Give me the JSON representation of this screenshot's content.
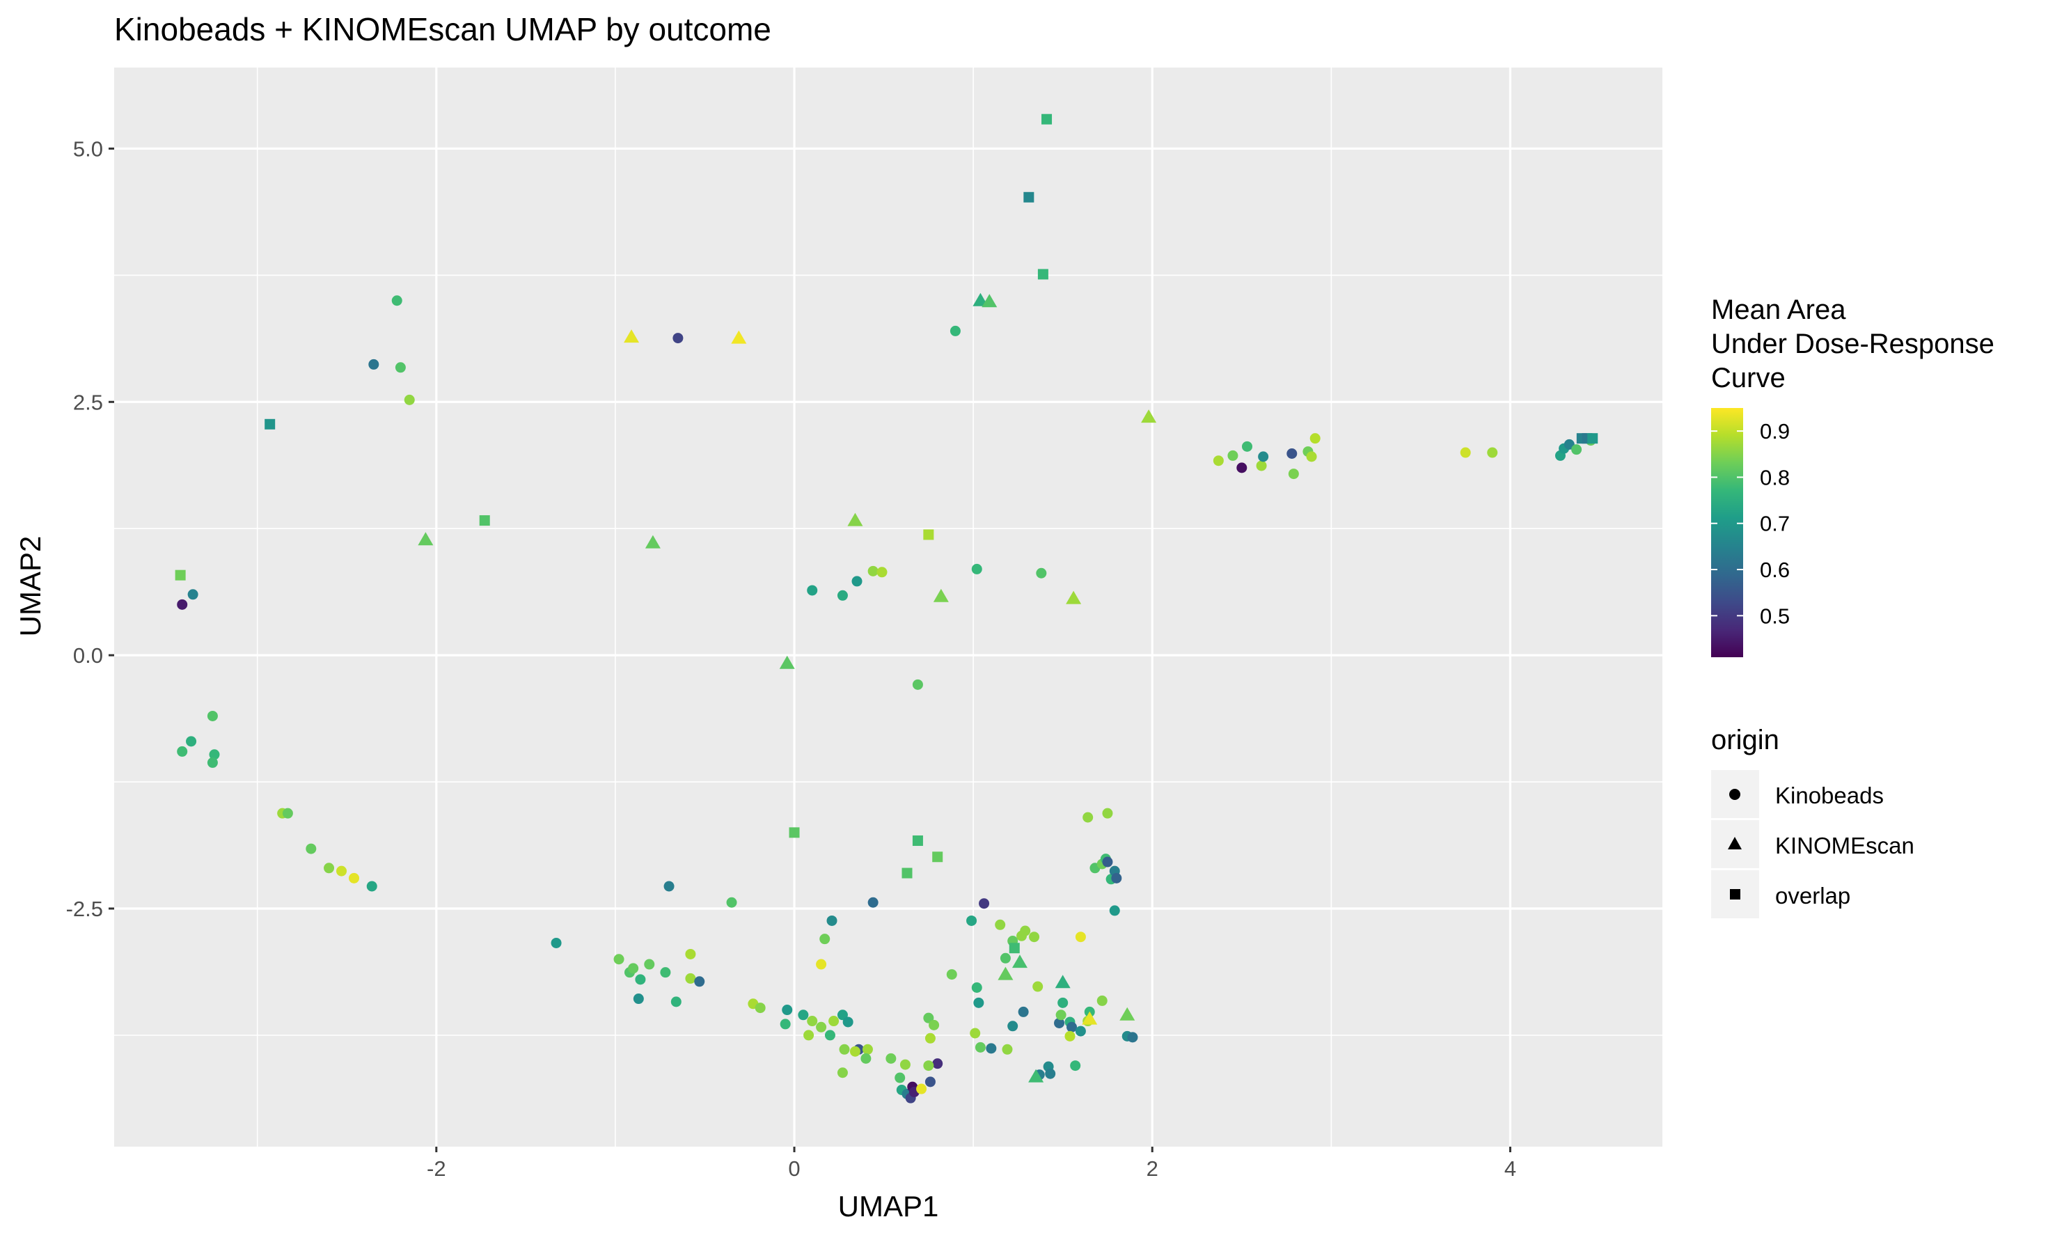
{
  "chart_data": {
    "type": "scatter",
    "title": "Kinobeads + KINOMEscan UMAP by outcome",
    "xlabel": "UMAP1",
    "ylabel": "UMAP2",
    "xlim": [
      -3.8,
      4.85
    ],
    "ylim": [
      -4.85,
      5.8
    ],
    "x_ticks": [
      -2,
      0,
      2,
      4
    ],
    "x_tick_labels": [
      "-2",
      "0",
      "2",
      "4"
    ],
    "y_ticks": [
      -2.5,
      0,
      2.5,
      5
    ],
    "y_tick_labels": [
      "-2.5",
      "0.0",
      "2.5",
      "5.0"
    ],
    "grid": true,
    "color_legend": {
      "title_lines": [
        "Mean Area",
        "Under Dose-Response",
        "Curve"
      ],
      "range": [
        0.41,
        0.95
      ],
      "ticks": [
        0.5,
        0.6,
        0.7,
        0.8,
        0.9
      ],
      "tick_labels": [
        "0.5",
        "0.6",
        "0.7",
        "0.8",
        "0.9"
      ],
      "palette": [
        "#440154",
        "#482878",
        "#3e4a89",
        "#31688e",
        "#26828e",
        "#1f9e89",
        "#35b779",
        "#6ece58",
        "#b5de2b",
        "#fde725"
      ]
    },
    "shape_legend": {
      "title": "origin",
      "items": [
        {
          "label": "Kinobeads",
          "shape": "circle"
        },
        {
          "label": "KINOMEscan",
          "shape": "triangle"
        },
        {
          "label": "overlap",
          "shape": "square"
        }
      ]
    },
    "series": [
      {
        "name": "Kinobeads",
        "shape": "circle",
        "points": [
          [
            -2.22,
            3.5,
            0.78
          ],
          [
            -2.35,
            2.87,
            0.62
          ],
          [
            -2.2,
            2.84,
            0.8
          ],
          [
            -2.15,
            2.52,
            0.86
          ],
          [
            -0.65,
            3.13,
            0.52
          ],
          [
            0.9,
            3.2,
            0.77
          ],
          [
            -3.42,
            0.5,
            0.45
          ],
          [
            -3.36,
            0.6,
            0.65
          ],
          [
            -3.25,
            -0.6,
            0.8
          ],
          [
            -3.42,
            -0.95,
            0.78
          ],
          [
            -3.37,
            -0.85,
            0.75
          ],
          [
            -3.24,
            -0.98,
            0.77
          ],
          [
            -3.25,
            -1.06,
            0.78
          ],
          [
            -2.86,
            -1.56,
            0.87
          ],
          [
            -2.83,
            -1.56,
            0.82
          ],
          [
            -2.7,
            -1.91,
            0.82
          ],
          [
            -2.6,
            -2.1,
            0.85
          ],
          [
            -2.53,
            -2.13,
            0.91
          ],
          [
            -2.46,
            -2.2,
            0.93
          ],
          [
            -2.36,
            -2.28,
            0.73
          ],
          [
            -1.33,
            -2.84,
            0.7
          ],
          [
            -0.7,
            -2.28,
            0.64
          ],
          [
            -0.35,
            -2.44,
            0.8
          ],
          [
            0.1,
            0.64,
            0.72
          ],
          [
            0.27,
            0.59,
            0.74
          ],
          [
            0.35,
            0.73,
            0.7
          ],
          [
            0.44,
            0.83,
            0.86
          ],
          [
            0.49,
            0.82,
            0.88
          ],
          [
            0.69,
            -0.29,
            0.81
          ],
          [
            1.02,
            0.85,
            0.77
          ],
          [
            1.38,
            0.81,
            0.8
          ],
          [
            -0.98,
            -3.0,
            0.83
          ],
          [
            -0.92,
            -3.13,
            0.8
          ],
          [
            -0.9,
            -3.09,
            0.82
          ],
          [
            -0.86,
            -3.2,
            0.76
          ],
          [
            -0.81,
            -3.05,
            0.82
          ],
          [
            -0.87,
            -3.39,
            0.68
          ],
          [
            -0.72,
            -3.13,
            0.78
          ],
          [
            -0.66,
            -3.42,
            0.76
          ],
          [
            -0.58,
            -2.95,
            0.88
          ],
          [
            -0.58,
            -3.19,
            0.87
          ],
          [
            -0.53,
            -3.22,
            0.6
          ],
          [
            -0.23,
            -3.44,
            0.88
          ],
          [
            -0.19,
            -3.48,
            0.85
          ],
          [
            -0.04,
            -3.5,
            0.7
          ],
          [
            -0.05,
            -3.64,
            0.77
          ],
          [
            0.05,
            -3.55,
            0.73
          ],
          [
            0.1,
            -3.61,
            0.86
          ],
          [
            0.08,
            -3.75,
            0.87
          ],
          [
            0.15,
            -3.67,
            0.85
          ],
          [
            0.22,
            -3.61,
            0.87
          ],
          [
            0.2,
            -3.75,
            0.77
          ],
          [
            0.17,
            -2.8,
            0.83
          ],
          [
            0.21,
            -2.62,
            0.67
          ],
          [
            0.15,
            -3.05,
            0.93
          ],
          [
            0.27,
            -3.55,
            0.72
          ],
          [
            0.3,
            -3.62,
            0.7
          ],
          [
            0.28,
            -3.89,
            0.85
          ],
          [
            0.36,
            -3.89,
            0.55
          ],
          [
            0.34,
            -3.91,
            0.88
          ],
          [
            0.41,
            -3.89,
            0.87
          ],
          [
            0.4,
            -3.98,
            0.82
          ],
          [
            0.27,
            -4.12,
            0.85
          ],
          [
            0.44,
            -2.44,
            0.6
          ],
          [
            0.54,
            -3.98,
            0.83
          ],
          [
            0.62,
            -4.04,
            0.86
          ],
          [
            0.59,
            -4.17,
            0.8
          ],
          [
            0.6,
            -4.29,
            0.73
          ],
          [
            0.63,
            -4.33,
            0.64
          ],
          [
            0.65,
            -4.37,
            0.52
          ],
          [
            0.66,
            -4.26,
            0.43
          ],
          [
            0.67,
            -4.31,
            0.46
          ],
          [
            0.71,
            -4.28,
            0.93
          ],
          [
            0.76,
            -4.21,
            0.55
          ],
          [
            0.8,
            -4.03,
            0.48
          ],
          [
            0.75,
            -4.05,
            0.85
          ],
          [
            0.75,
            -3.58,
            0.82
          ],
          [
            0.78,
            -3.65,
            0.84
          ],
          [
            0.76,
            -3.78,
            0.88
          ],
          [
            0.88,
            -3.15,
            0.83
          ],
          [
            0.99,
            -2.62,
            0.73
          ],
          [
            1.06,
            -2.45,
            0.5
          ],
          [
            1.15,
            -2.66,
            0.86
          ],
          [
            1.02,
            -3.28,
            0.77
          ],
          [
            1.03,
            -3.43,
            0.7
          ],
          [
            1.01,
            -3.73,
            0.87
          ],
          [
            1.04,
            -3.87,
            0.82
          ],
          [
            1.1,
            -3.88,
            0.63
          ],
          [
            1.18,
            -2.99,
            0.8
          ],
          [
            1.22,
            -2.82,
            0.82
          ],
          [
            1.27,
            -2.77,
            0.86
          ],
          [
            1.29,
            -2.72,
            0.86
          ],
          [
            1.34,
            -2.78,
            0.86
          ],
          [
            1.19,
            -3.89,
            0.86
          ],
          [
            1.22,
            -3.66,
            0.67
          ],
          [
            1.28,
            -3.52,
            0.62
          ],
          [
            1.36,
            -3.27,
            0.87
          ],
          [
            1.42,
            -4.06,
            0.67
          ],
          [
            1.43,
            -4.13,
            0.64
          ],
          [
            1.48,
            -3.63,
            0.6
          ],
          [
            1.5,
            -3.43,
            0.75
          ],
          [
            1.49,
            -3.55,
            0.83
          ],
          [
            1.54,
            -3.62,
            0.75
          ],
          [
            1.55,
            -3.67,
            0.6
          ],
          [
            1.57,
            -4.05,
            0.77
          ],
          [
            1.6,
            -3.71,
            0.68
          ],
          [
            1.65,
            -3.52,
            0.77
          ],
          [
            1.64,
            -3.61,
            0.87
          ],
          [
            1.54,
            -3.76,
            0.89
          ],
          [
            1.37,
            -4.14,
            0.64
          ],
          [
            1.6,
            -2.78,
            0.93
          ],
          [
            1.64,
            -1.6,
            0.86
          ],
          [
            1.68,
            -2.1,
            0.8
          ],
          [
            1.72,
            -2.06,
            0.83
          ],
          [
            1.74,
            -2.01,
            0.78
          ],
          [
            1.72,
            -3.41,
            0.85
          ],
          [
            1.75,
            -1.56,
            0.86
          ],
          [
            1.75,
            -2.04,
            0.57
          ],
          [
            1.77,
            -2.21,
            0.77
          ],
          [
            1.79,
            -2.13,
            0.64
          ],
          [
            1.8,
            -2.2,
            0.58
          ],
          [
            1.79,
            -2.52,
            0.7
          ],
          [
            1.86,
            -3.76,
            0.67
          ],
          [
            1.89,
            -3.77,
            0.62
          ],
          [
            2.37,
            1.92,
            0.88
          ],
          [
            2.45,
            1.97,
            0.83
          ],
          [
            2.5,
            1.85,
            0.43
          ],
          [
            2.53,
            2.06,
            0.78
          ],
          [
            2.61,
            1.87,
            0.87
          ],
          [
            2.62,
            1.96,
            0.67
          ],
          [
            2.78,
            1.99,
            0.55
          ],
          [
            2.79,
            1.79,
            0.84
          ],
          [
            2.87,
            2.01,
            0.83
          ],
          [
            2.89,
            1.96,
            0.88
          ],
          [
            2.91,
            2.14,
            0.89
          ],
          [
            3.75,
            2.0,
            0.91
          ],
          [
            3.9,
            2.0,
            0.87
          ],
          [
            4.28,
            1.97,
            0.72
          ],
          [
            4.3,
            2.04,
            0.7
          ],
          [
            4.33,
            2.08,
            0.65
          ],
          [
            4.37,
            2.03,
            0.8
          ],
          [
            4.45,
            2.12,
            0.82
          ]
        ]
      },
      {
        "name": "KINOMEscan",
        "shape": "triangle",
        "points": [
          [
            -0.91,
            3.14,
            0.93
          ],
          [
            -0.31,
            3.13,
            0.94
          ],
          [
            1.04,
            3.5,
            0.75
          ],
          [
            1.09,
            3.49,
            0.8
          ],
          [
            1.98,
            2.35,
            0.87
          ],
          [
            -2.06,
            1.14,
            0.82
          ],
          [
            -0.79,
            1.11,
            0.82
          ],
          [
            0.34,
            1.33,
            0.85
          ],
          [
            0.82,
            0.58,
            0.84
          ],
          [
            1.56,
            0.56,
            0.87
          ],
          [
            -0.04,
            -0.08,
            0.81
          ],
          [
            1.18,
            -3.15,
            0.82
          ],
          [
            1.26,
            -3.03,
            0.79
          ],
          [
            1.5,
            -3.23,
            0.75
          ],
          [
            1.65,
            -3.59,
            0.93
          ],
          [
            1.86,
            -3.55,
            0.83
          ],
          [
            1.35,
            -4.16,
            0.78
          ]
        ]
      },
      {
        "name": "overlap",
        "shape": "square",
        "points": [
          [
            1.41,
            5.29,
            0.77
          ],
          [
            1.31,
            4.52,
            0.66
          ],
          [
            1.39,
            3.76,
            0.77
          ],
          [
            -2.93,
            2.28,
            0.69
          ],
          [
            -1.73,
            1.33,
            0.8
          ],
          [
            -3.43,
            0.79,
            0.83
          ],
          [
            0.75,
            1.19,
            0.88
          ],
          [
            0.0,
            -1.75,
            0.81
          ],
          [
            0.69,
            -1.83,
            0.78
          ],
          [
            0.63,
            -2.15,
            0.8
          ],
          [
            0.8,
            -1.99,
            0.82
          ],
          [
            1.23,
            -2.89,
            0.78
          ],
          [
            4.4,
            2.14,
            0.65
          ],
          [
            4.43,
            2.14,
            0.63
          ],
          [
            4.46,
            2.14,
            0.7
          ]
        ]
      }
    ]
  }
}
